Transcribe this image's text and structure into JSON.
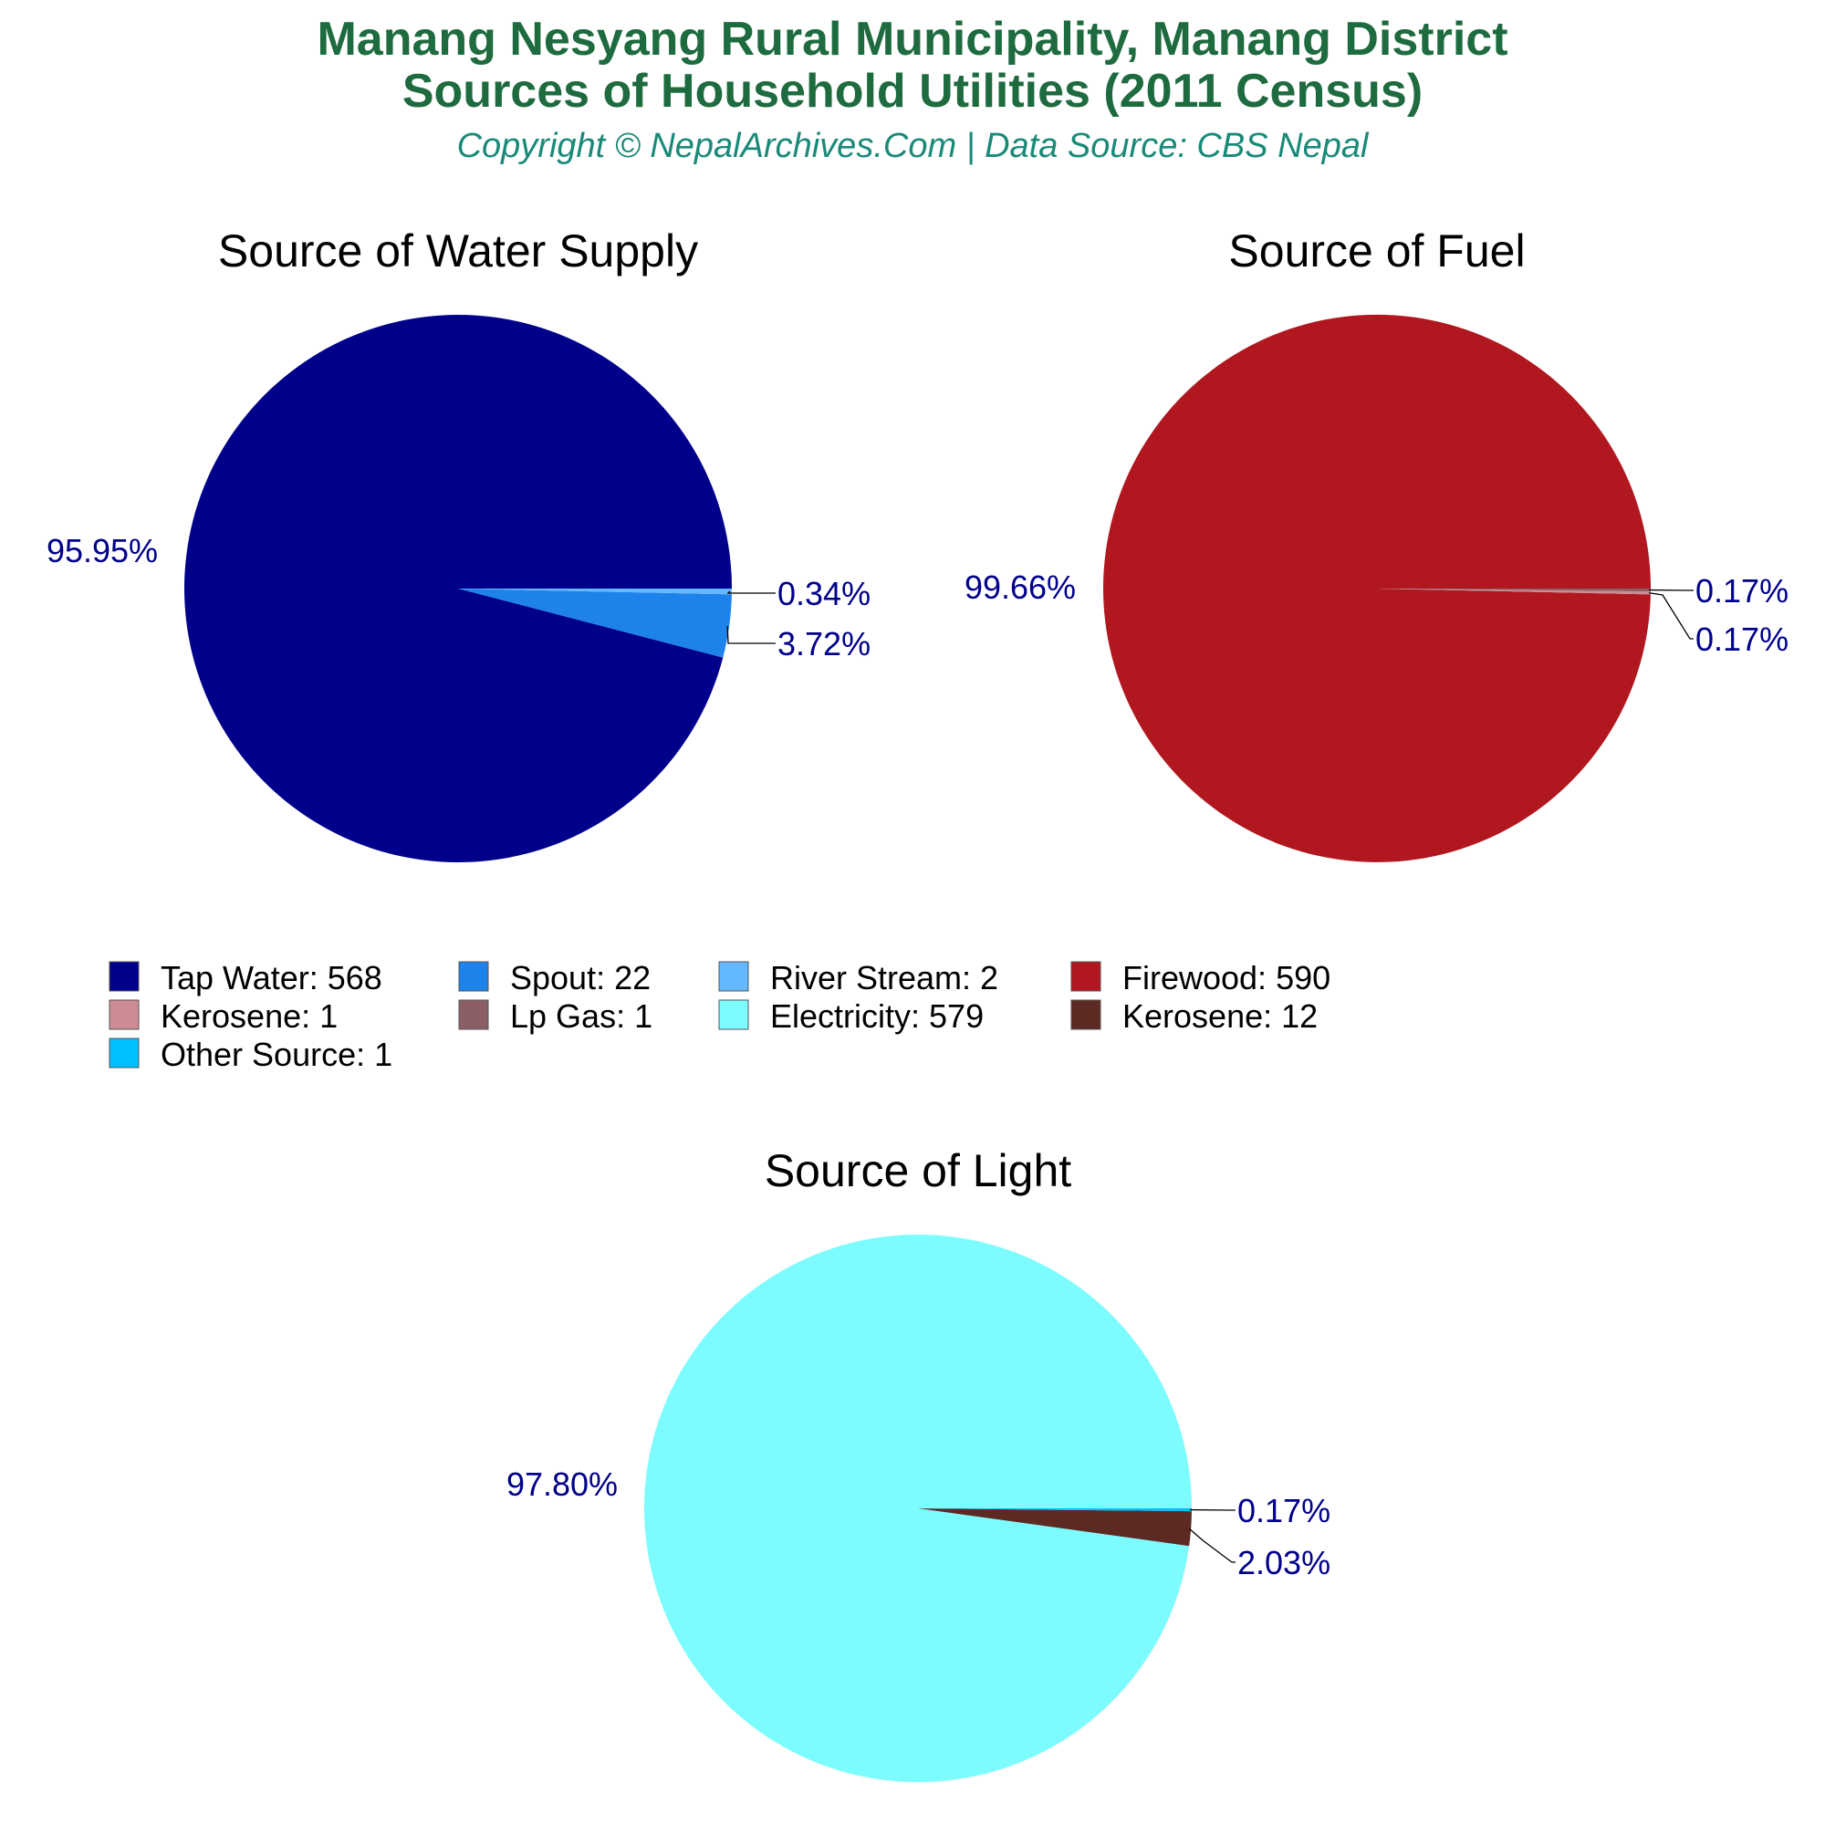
{
  "header": {
    "title_line1": "Manang Nesyang Rural Municipality, Manang District",
    "title_line2": "Sources of Household Utilities (2011 Census)",
    "subtitle": "Copyright © NepalArchives.Com | Data Source: CBS Nepal"
  },
  "chart_data": [
    {
      "type": "pie",
      "title": "Source of Water Supply",
      "slices": [
        {
          "label": "Tap Water",
          "value": 568,
          "percent_label": "95.95%",
          "color": "#00008b"
        },
        {
          "label": "Spout",
          "value": 22,
          "percent_label": "3.72%",
          "color": "#1e82eb"
        },
        {
          "label": "River Stream",
          "value": 2,
          "percent_label": "0.34%",
          "color": "#63b8ff"
        }
      ]
    },
    {
      "type": "pie",
      "title": "Source of Fuel",
      "slices": [
        {
          "label": "Firewood",
          "value": 590,
          "percent_label": "99.66%",
          "color": "#b0171f"
        },
        {
          "label": "Kerosene",
          "value": 1,
          "percent_label": "0.17%",
          "color": "#cd8c95"
        },
        {
          "label": "Lp Gas",
          "value": 1,
          "percent_label": "0.17%",
          "color": "#8b5f65"
        }
      ]
    },
    {
      "type": "pie",
      "title": "Source of Light",
      "slices": [
        {
          "label": "Electricity",
          "value": 579,
          "percent_label": "97.80%",
          "color": "#7cfcff"
        },
        {
          "label": "Kerosene",
          "value": 12,
          "percent_label": "2.03%",
          "color": "#5c2a22"
        },
        {
          "label": "Other Source",
          "value": 1,
          "percent_label": "0.17%",
          "color": "#00bfff"
        }
      ]
    }
  ],
  "legend": [
    {
      "text": "Tap Water: 568",
      "color": "#00008b"
    },
    {
      "text": "Spout: 22",
      "color": "#1e82eb"
    },
    {
      "text": "River Stream: 2",
      "color": "#63b8ff"
    },
    {
      "text": "Firewood: 590",
      "color": "#b0171f"
    },
    {
      "text": "Kerosene: 1",
      "color": "#cd8c95"
    },
    {
      "text": "Lp Gas: 1",
      "color": "#8b5f65"
    },
    {
      "text": "Electricity: 579",
      "color": "#7cfcff"
    },
    {
      "text": "Kerosene: 12",
      "color": "#5c2a22"
    },
    {
      "text": "Other Source: 1",
      "color": "#00bfff"
    }
  ]
}
